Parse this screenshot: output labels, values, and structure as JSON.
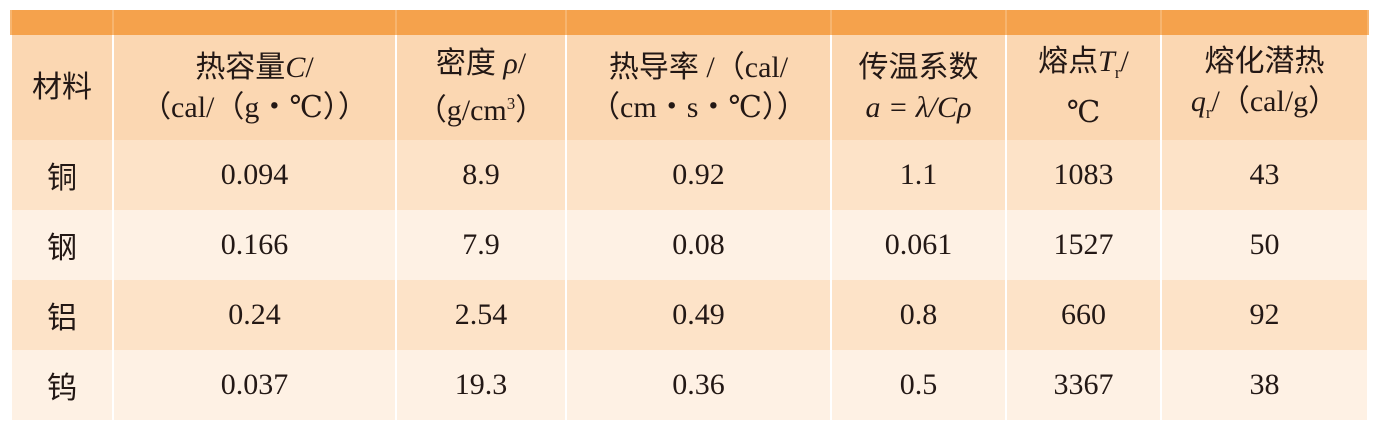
{
  "table": {
    "header": [
      [
        [
          "材料"
        ]
      ],
      [
        [
          "热容量",
          "C",
          "/"
        ],
        [
          "（cal/（g・℃））"
        ]
      ],
      [
        [
          "密度 ",
          "ρ",
          "/"
        ],
        [
          "（g/cm",
          "3",
          "）"
        ]
      ],
      [
        [
          "热导率 /（cal/"
        ],
        [
          "（cm・s・℃））"
        ]
      ],
      [
        [
          "传温系数"
        ],
        [
          "a = λ/Cρ"
        ]
      ],
      [
        [
          "熔点",
          "T",
          "r",
          "/"
        ],
        [
          "℃"
        ]
      ],
      [
        [
          "熔化潜热"
        ],
        [
          "q",
          "r",
          "/（cal/g）"
        ]
      ]
    ],
    "rows": [
      [
        "铜",
        0.094,
        8.9,
        0.92,
        1.1,
        1083,
        43
      ],
      [
        "钢",
        0.166,
        7.9,
        0.08,
        0.061,
        1527,
        50
      ],
      [
        "铝",
        0.24,
        2.54,
        0.49,
        0.8,
        660,
        92
      ],
      [
        "钨",
        0.037,
        19.3,
        0.36,
        0.5,
        3367,
        38
      ]
    ]
  }
}
